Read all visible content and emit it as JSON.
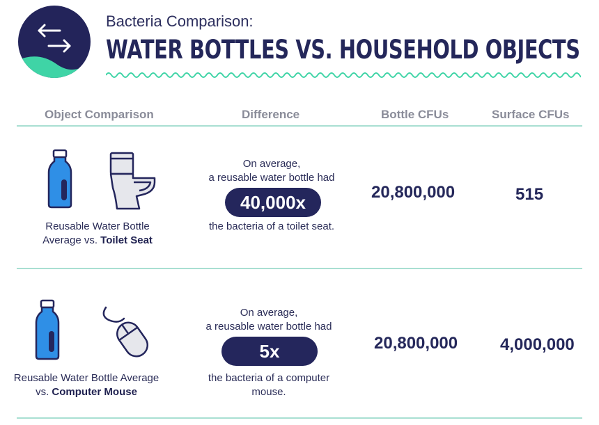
{
  "header": {
    "subtitle": "Bacteria Comparison:",
    "title": "WATER BOTTLES VS. HOUSEHOLD OBJECTS",
    "logo_icon": "swap-arrows-icon"
  },
  "columns": {
    "object": "Object Comparison",
    "difference": "Difference",
    "bottle": "Bottle CFUs",
    "surface": "Surface CFUs"
  },
  "rows": [
    {
      "caption_line1": "Reusable Water Bottle",
      "caption_line2_prefix": "Average vs. ",
      "caption_object": "Toilet Seat",
      "diff_line1": "On average,",
      "diff_line2": "a reusable water bottle had",
      "multiplier": "40,000x",
      "diff_line3": "the bacteria of a toilet seat.",
      "diff_line4": "",
      "bottle_cfus": "20,800,000",
      "surface_cfus": "515",
      "icons": [
        "water-bottle-icon",
        "toilet-icon"
      ]
    },
    {
      "caption_line1": "Reusable Water Bottle Average",
      "caption_line2_prefix": "vs. ",
      "caption_object": "Computer Mouse",
      "diff_line1": "On average,",
      "diff_line2": "a reusable water bottle had",
      "multiplier": "5x",
      "diff_line3": "the bacteria of a computer",
      "diff_line4": "mouse.",
      "bottle_cfus": "20,800,000",
      "surface_cfus": "4,000,000",
      "icons": [
        "water-bottle-icon",
        "computer-mouse-icon"
      ]
    }
  ],
  "colors": {
    "navy": "#24265c",
    "teal": "#3fd4a6",
    "bottle_blue": "#2f8fe6"
  }
}
